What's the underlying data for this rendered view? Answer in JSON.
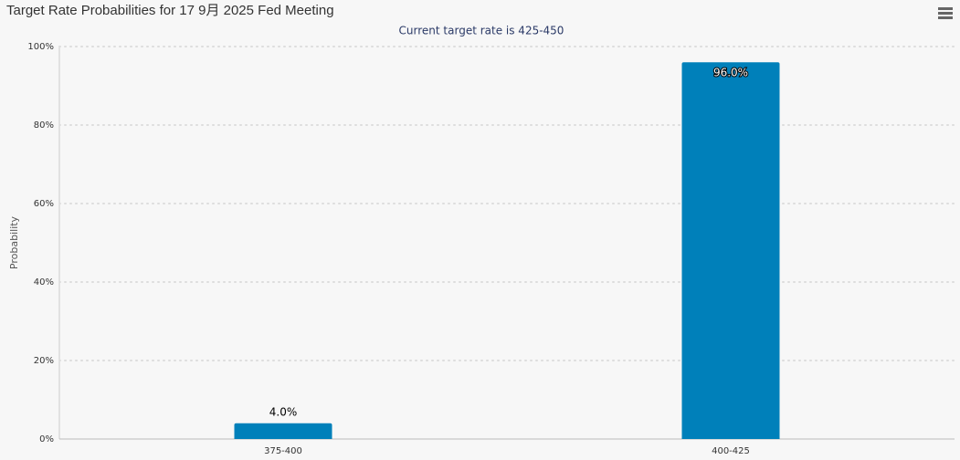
{
  "chart_data": {
    "type": "bar",
    "title": "Target Rate Probabilities for 17 9月 2025 Fed Meeting",
    "subtitle": "Current target rate is 425-450",
    "y_label": "Probability",
    "categories": [
      "375-400",
      "400-425"
    ],
    "values": [
      4.0,
      96.0
    ],
    "value_labels": [
      "4.0%",
      "96.0%"
    ],
    "color": "#0080ba",
    "ylim": [
      0,
      100
    ],
    "yticks": [
      {
        "value": 0,
        "label": "0%"
      },
      {
        "value": 20,
        "label": "20%"
      },
      {
        "value": 40,
        "label": "40%"
      },
      {
        "value": 60,
        "label": "60%"
      },
      {
        "value": 80,
        "label": "80%"
      },
      {
        "value": 100,
        "label": "100%"
      }
    ],
    "grid": true
  }
}
